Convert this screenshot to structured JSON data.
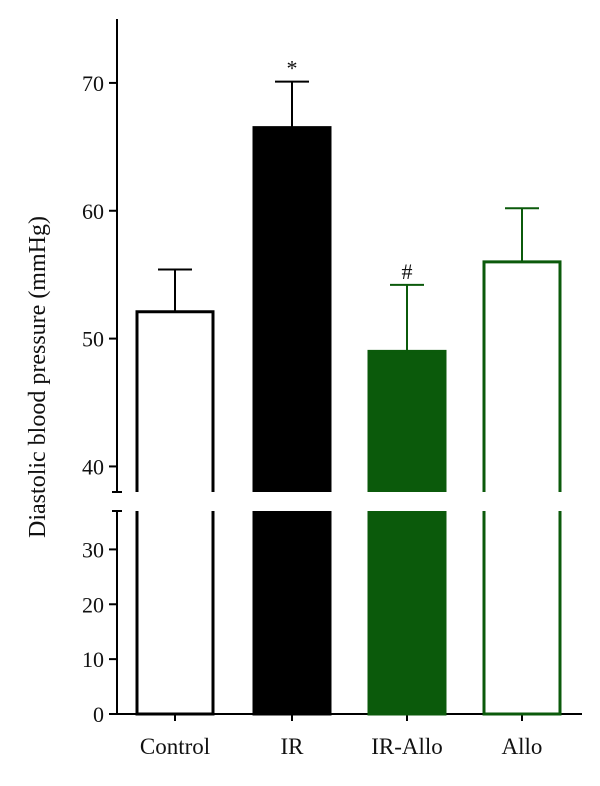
{
  "chart_data": {
    "type": "bar",
    "title": "",
    "xlabel": "",
    "ylabel": "Diastolic blood pressure (mmHg)",
    "categories": [
      "Control",
      "IR",
      "IR-Allo",
      "Allo"
    ],
    "values": [
      52.1,
      66.5,
      49.0,
      56.0
    ],
    "errors": [
      3.3,
      3.6,
      5.2,
      4.2
    ],
    "annotations": [
      "",
      "*",
      "#",
      ""
    ],
    "bar_fill": [
      "#ffffff",
      "#000000",
      "#0b5a0b",
      "#ffffff"
    ],
    "bar_stroke": [
      "#000000",
      "#000000",
      "#0b5a0b",
      "#0b5a0b"
    ],
    "axis_break": [
      37,
      38
    ],
    "lower_segment": {
      "ylim": [
        0,
        37
      ],
      "ticks": [
        0,
        10,
        20,
        30
      ]
    },
    "upper_segment": {
      "ylim": [
        38,
        75
      ],
      "ticks": [
        40,
        50,
        60,
        70
      ]
    },
    "grid": false,
    "legend": "none"
  }
}
